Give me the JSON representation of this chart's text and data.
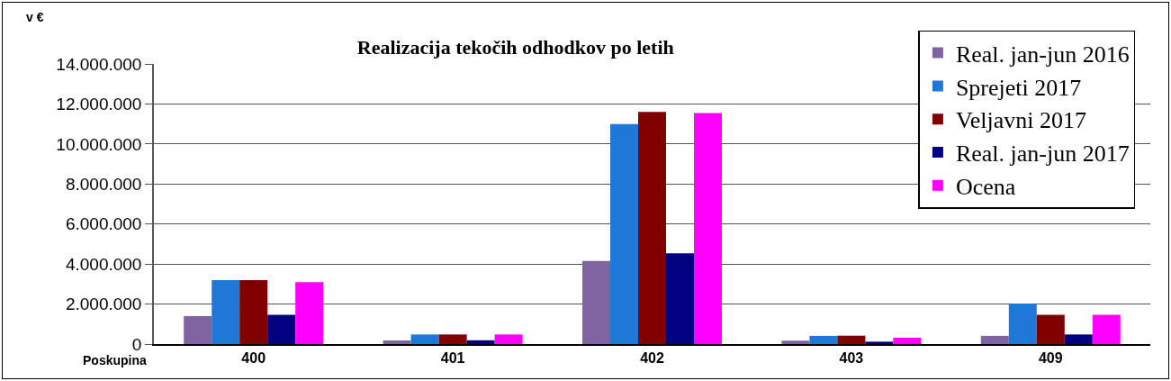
{
  "chart_data": {
    "type": "bar",
    "title": "Realizacija tekočih odhodkov po letih",
    "ylabel": "v €",
    "xlabel": "Poskupina",
    "categories": [
      "400",
      "401",
      "402",
      "403",
      "409"
    ],
    "series": [
      {
        "name": "Real. jan-jun 2016",
        "color": "#8064a2",
        "values": [
          1400000,
          180000,
          4150000,
          170000,
          410000
        ]
      },
      {
        "name": "Sprejeti 2017",
        "color": "#1e78d7",
        "values": [
          3200000,
          480000,
          11000000,
          410000,
          2030000
        ]
      },
      {
        "name": "Veljavni 2017",
        "color": "#800000",
        "values": [
          3200000,
          480000,
          11600000,
          420000,
          1460000
        ]
      },
      {
        "name": "Real. jan-jun 2017",
        "color": "#000080",
        "values": [
          1460000,
          190000,
          4530000,
          120000,
          480000
        ]
      },
      {
        "name": "Ocena",
        "color": "#ff00ff",
        "values": [
          3100000,
          480000,
          11550000,
          320000,
          1460000
        ]
      }
    ],
    "ylim": [
      0,
      14000000
    ],
    "yticks": [
      {
        "value": 0,
        "label": "0"
      },
      {
        "value": 2000000,
        "label": "2.000.000"
      },
      {
        "value": 4000000,
        "label": "4.000.000"
      },
      {
        "value": 6000000,
        "label": "6.000.000"
      },
      {
        "value": 8000000,
        "label": "8.000.000"
      },
      {
        "value": 10000000,
        "label": "10.000.000"
      },
      {
        "value": 12000000,
        "label": "12.000.000"
      },
      {
        "value": 14000000,
        "label": "14.000.000"
      }
    ],
    "grid": "y",
    "legend": "top right"
  }
}
